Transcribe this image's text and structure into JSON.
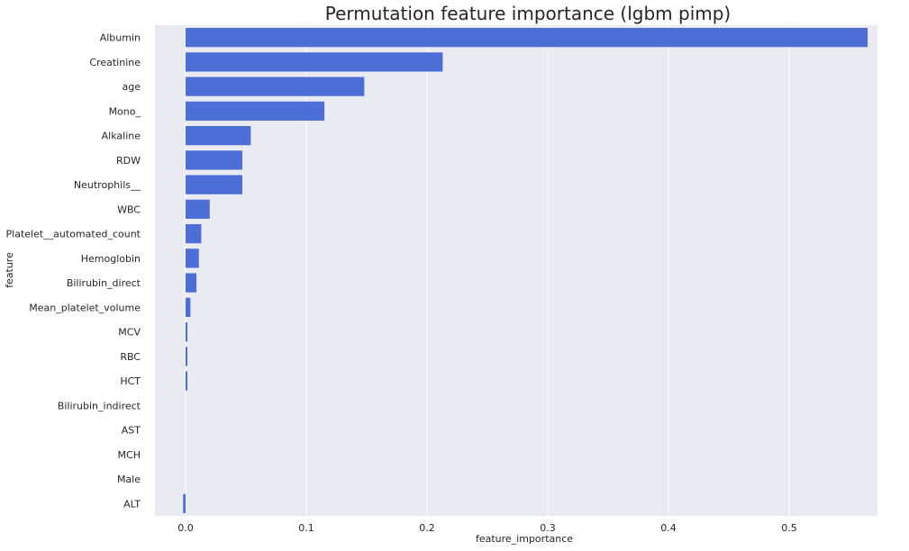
{
  "chart_data": {
    "type": "bar",
    "orientation": "horizontal",
    "title": "Permutation feature importance (lgbm pimp)",
    "xlabel": "feature_importance",
    "ylabel": "feature",
    "xlim": [
      -0.025,
      0.59
    ],
    "xticks": [
      "0.0",
      "0.1",
      "0.2",
      "0.3",
      "0.4",
      "0.5"
    ],
    "grid": true,
    "bar_color": "#4c6ed6",
    "background_color": "#eaeaf2",
    "grid_color": "#ffffff",
    "categories": [
      "Albumin",
      "Creatinine",
      "age",
      "Mono_",
      "Alkaline",
      "RDW",
      "Neutrophils__",
      "WBC",
      "Platelet__automated_count",
      "Hemoglobin",
      "Bilirubin_direct",
      "Mean_platelet_volume",
      "MCV",
      "RBC",
      "HCT",
      "Bilirubin_indirect",
      "AST",
      "MCH",
      "Male",
      "ALT"
    ],
    "values": [
      0.565,
      0.213,
      0.148,
      0.115,
      0.054,
      0.047,
      0.047,
      0.02,
      0.013,
      0.011,
      0.009,
      0.004,
      0.0015,
      0.0015,
      0.0015,
      0.0,
      0.0,
      0.0,
      0.0,
      -0.002
    ]
  }
}
